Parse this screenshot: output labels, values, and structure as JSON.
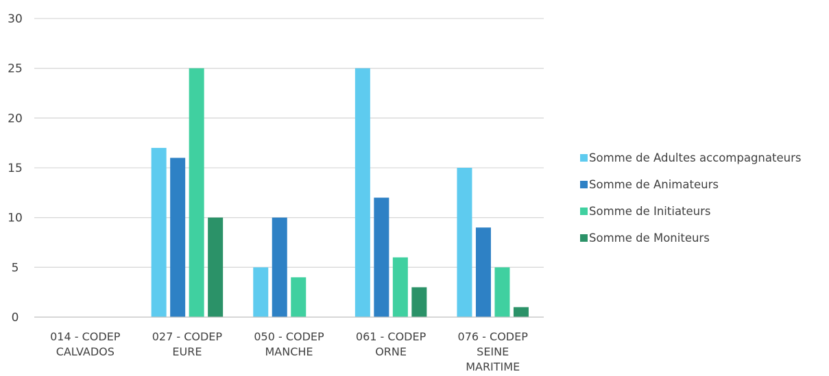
{
  "chart_data": {
    "type": "bar",
    "categories": [
      [
        "014 - CODEP",
        "CALVADOS"
      ],
      [
        "027 - CODEP",
        "EURE"
      ],
      [
        "050 - CODEP",
        "MANCHE"
      ],
      [
        "061 - CODEP",
        "ORNE"
      ],
      [
        "076 - CODEP",
        "SEINE",
        "MARITIME"
      ]
    ],
    "series": [
      {
        "name": "Somme de Adultes accompagnateurs",
        "color": "#5ecbef",
        "values": [
          null,
          17,
          5,
          25,
          15
        ]
      },
      {
        "name": "Somme de Animateurs",
        "color": "#2e81c5",
        "values": [
          null,
          16,
          10,
          12,
          9
        ]
      },
      {
        "name": "Somme de Initiateurs",
        "color": "#40d0a0",
        "values": [
          null,
          25,
          4,
          6,
          5
        ]
      },
      {
        "name": "Somme de Moniteurs",
        "color": "#2b9268",
        "values": [
          null,
          10,
          null,
          3,
          1
        ]
      }
    ],
    "ylim": [
      0,
      30
    ],
    "yticks": [
      0,
      5,
      10,
      15,
      20,
      25,
      30
    ],
    "grid": true,
    "legend_position": "right"
  }
}
